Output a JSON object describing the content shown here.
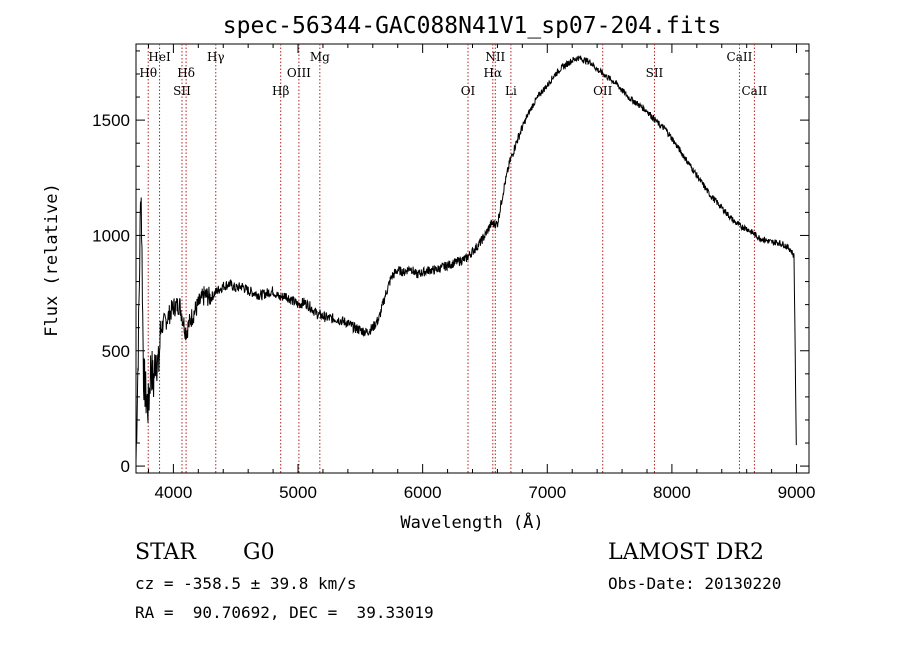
{
  "chart_data": {
    "type": "line",
    "title": "spec-56344-GAC088N41V1_sp07-204.fits",
    "xlabel": "Wavelength (Å)",
    "ylabel": "Flux (relative)",
    "xlim": [
      3700,
      9100
    ],
    "ylim": [
      -30,
      1830
    ],
    "x_ticks": [
      4000,
      5000,
      6000,
      7000,
      8000,
      9000
    ],
    "y_ticks": [
      0,
      500,
      1000,
      1500
    ],
    "grid": false,
    "series": [
      {
        "x": [
          3700,
          3720,
          3740,
          3760,
          3780,
          3800,
          3820,
          3840,
          3860,
          3880,
          3900,
          3950,
          4000,
          4050,
          4100,
          4150,
          4200,
          4250,
          4300,
          4350,
          4400,
          4450,
          4500,
          4550,
          4600,
          4650,
          4700,
          4750,
          4800,
          4850,
          4900,
          4950,
          5000,
          5050,
          5100,
          5150,
          5200,
          5250,
          5300,
          5350,
          5400,
          5450,
          5500,
          5550,
          5600,
          5650,
          5700,
          5750,
          5800,
          5850,
          5900,
          5950,
          6000,
          6050,
          6100,
          6150,
          6200,
          6250,
          6300,
          6350,
          6400,
          6450,
          6500,
          6550,
          6600,
          6650,
          6700,
          6750,
          6800,
          6850,
          6900,
          6950,
          7000,
          7050,
          7100,
          7150,
          7200,
          7250,
          7300,
          7350,
          7400,
          7450,
          7500,
          7550,
          7600,
          7650,
          7700,
          7750,
          7800,
          7850,
          7900,
          7950,
          8000,
          8050,
          8100,
          8150,
          8200,
          8250,
          8300,
          8350,
          8400,
          8450,
          8500,
          8550,
          8600,
          8650,
          8700,
          8750,
          8800,
          8850,
          8900,
          8950,
          8980,
          9000
        ],
        "y": [
          20,
          560,
          1250,
          400,
          300,
          250,
          450,
          350,
          500,
          420,
          600,
          640,
          690,
          700,
          580,
          650,
          700,
          740,
          730,
          760,
          780,
          790,
          770,
          780,
          760,
          750,
          740,
          750,
          760,
          730,
          740,
          720,
          700,
          710,
          690,
          660,
          650,
          640,
          640,
          630,
          620,
          600,
          590,
          580,
          600,
          640,
          740,
          820,
          850,
          840,
          860,
          830,
          840,
          850,
          850,
          860,
          870,
          880,
          890,
          900,
          930,
          960,
          1000,
          1050,
          1050,
          1200,
          1320,
          1400,
          1470,
          1530,
          1580,
          1620,
          1650,
          1690,
          1720,
          1740,
          1760,
          1770,
          1760,
          1750,
          1720,
          1700,
          1680,
          1660,
          1630,
          1600,
          1580,
          1560,
          1540,
          1510,
          1480,
          1460,
          1420,
          1380,
          1340,
          1300,
          1260,
          1220,
          1180,
          1150,
          1120,
          1090,
          1060,
          1040,
          1030,
          1010,
          990,
          980,
          970,
          970,
          960,
          940,
          910,
          0
        ]
      }
    ],
    "lines": [
      {
        "name": "HeI",
        "wl": 3889,
        "row": 1
      },
      {
        "name": "Hθ",
        "wl": 3798,
        "row": 2
      },
      {
        "name": "Hδ",
        "wl": 4102,
        "row": 2
      },
      {
        "name": "SII",
        "wl": 4069,
        "row": 3
      },
      {
        "name": "Hγ",
        "wl": 4340,
        "row": 1
      },
      {
        "name": "Hβ",
        "wl": 4861,
        "row": 3
      },
      {
        "name": "OIII",
        "wl": 5007,
        "row": 2
      },
      {
        "name": "Mg",
        "wl": 5175,
        "row": 1
      },
      {
        "name": "OI",
        "wl": 6364,
        "row": 3
      },
      {
        "name": "NII",
        "wl": 6583,
        "row": 1
      },
      {
        "name": "Hα",
        "wl": 6563,
        "row": 2
      },
      {
        "name": "Li",
        "wl": 6708,
        "row": 3
      },
      {
        "name": "OII",
        "wl": 7445,
        "row": 3
      },
      {
        "name": "SII",
        "wl": 7860,
        "row": 2
      },
      {
        "name": "CaII",
        "wl": 8542,
        "row": 1
      },
      {
        "name": "CaII",
        "wl": 8662,
        "row": 3
      }
    ]
  },
  "info": {
    "object_class": "STAR",
    "subclass": "G0",
    "survey": "LAMOST DR2",
    "cz": "cz = -358.5 ± 39.8 km/s",
    "obs_date": "Obs-Date: 20130220",
    "coords": "RA =  90.70692, DEC =  39.33019"
  },
  "colors": {
    "axis": "#000000",
    "spectrum": "#000000",
    "line_marker": "#b22222"
  }
}
